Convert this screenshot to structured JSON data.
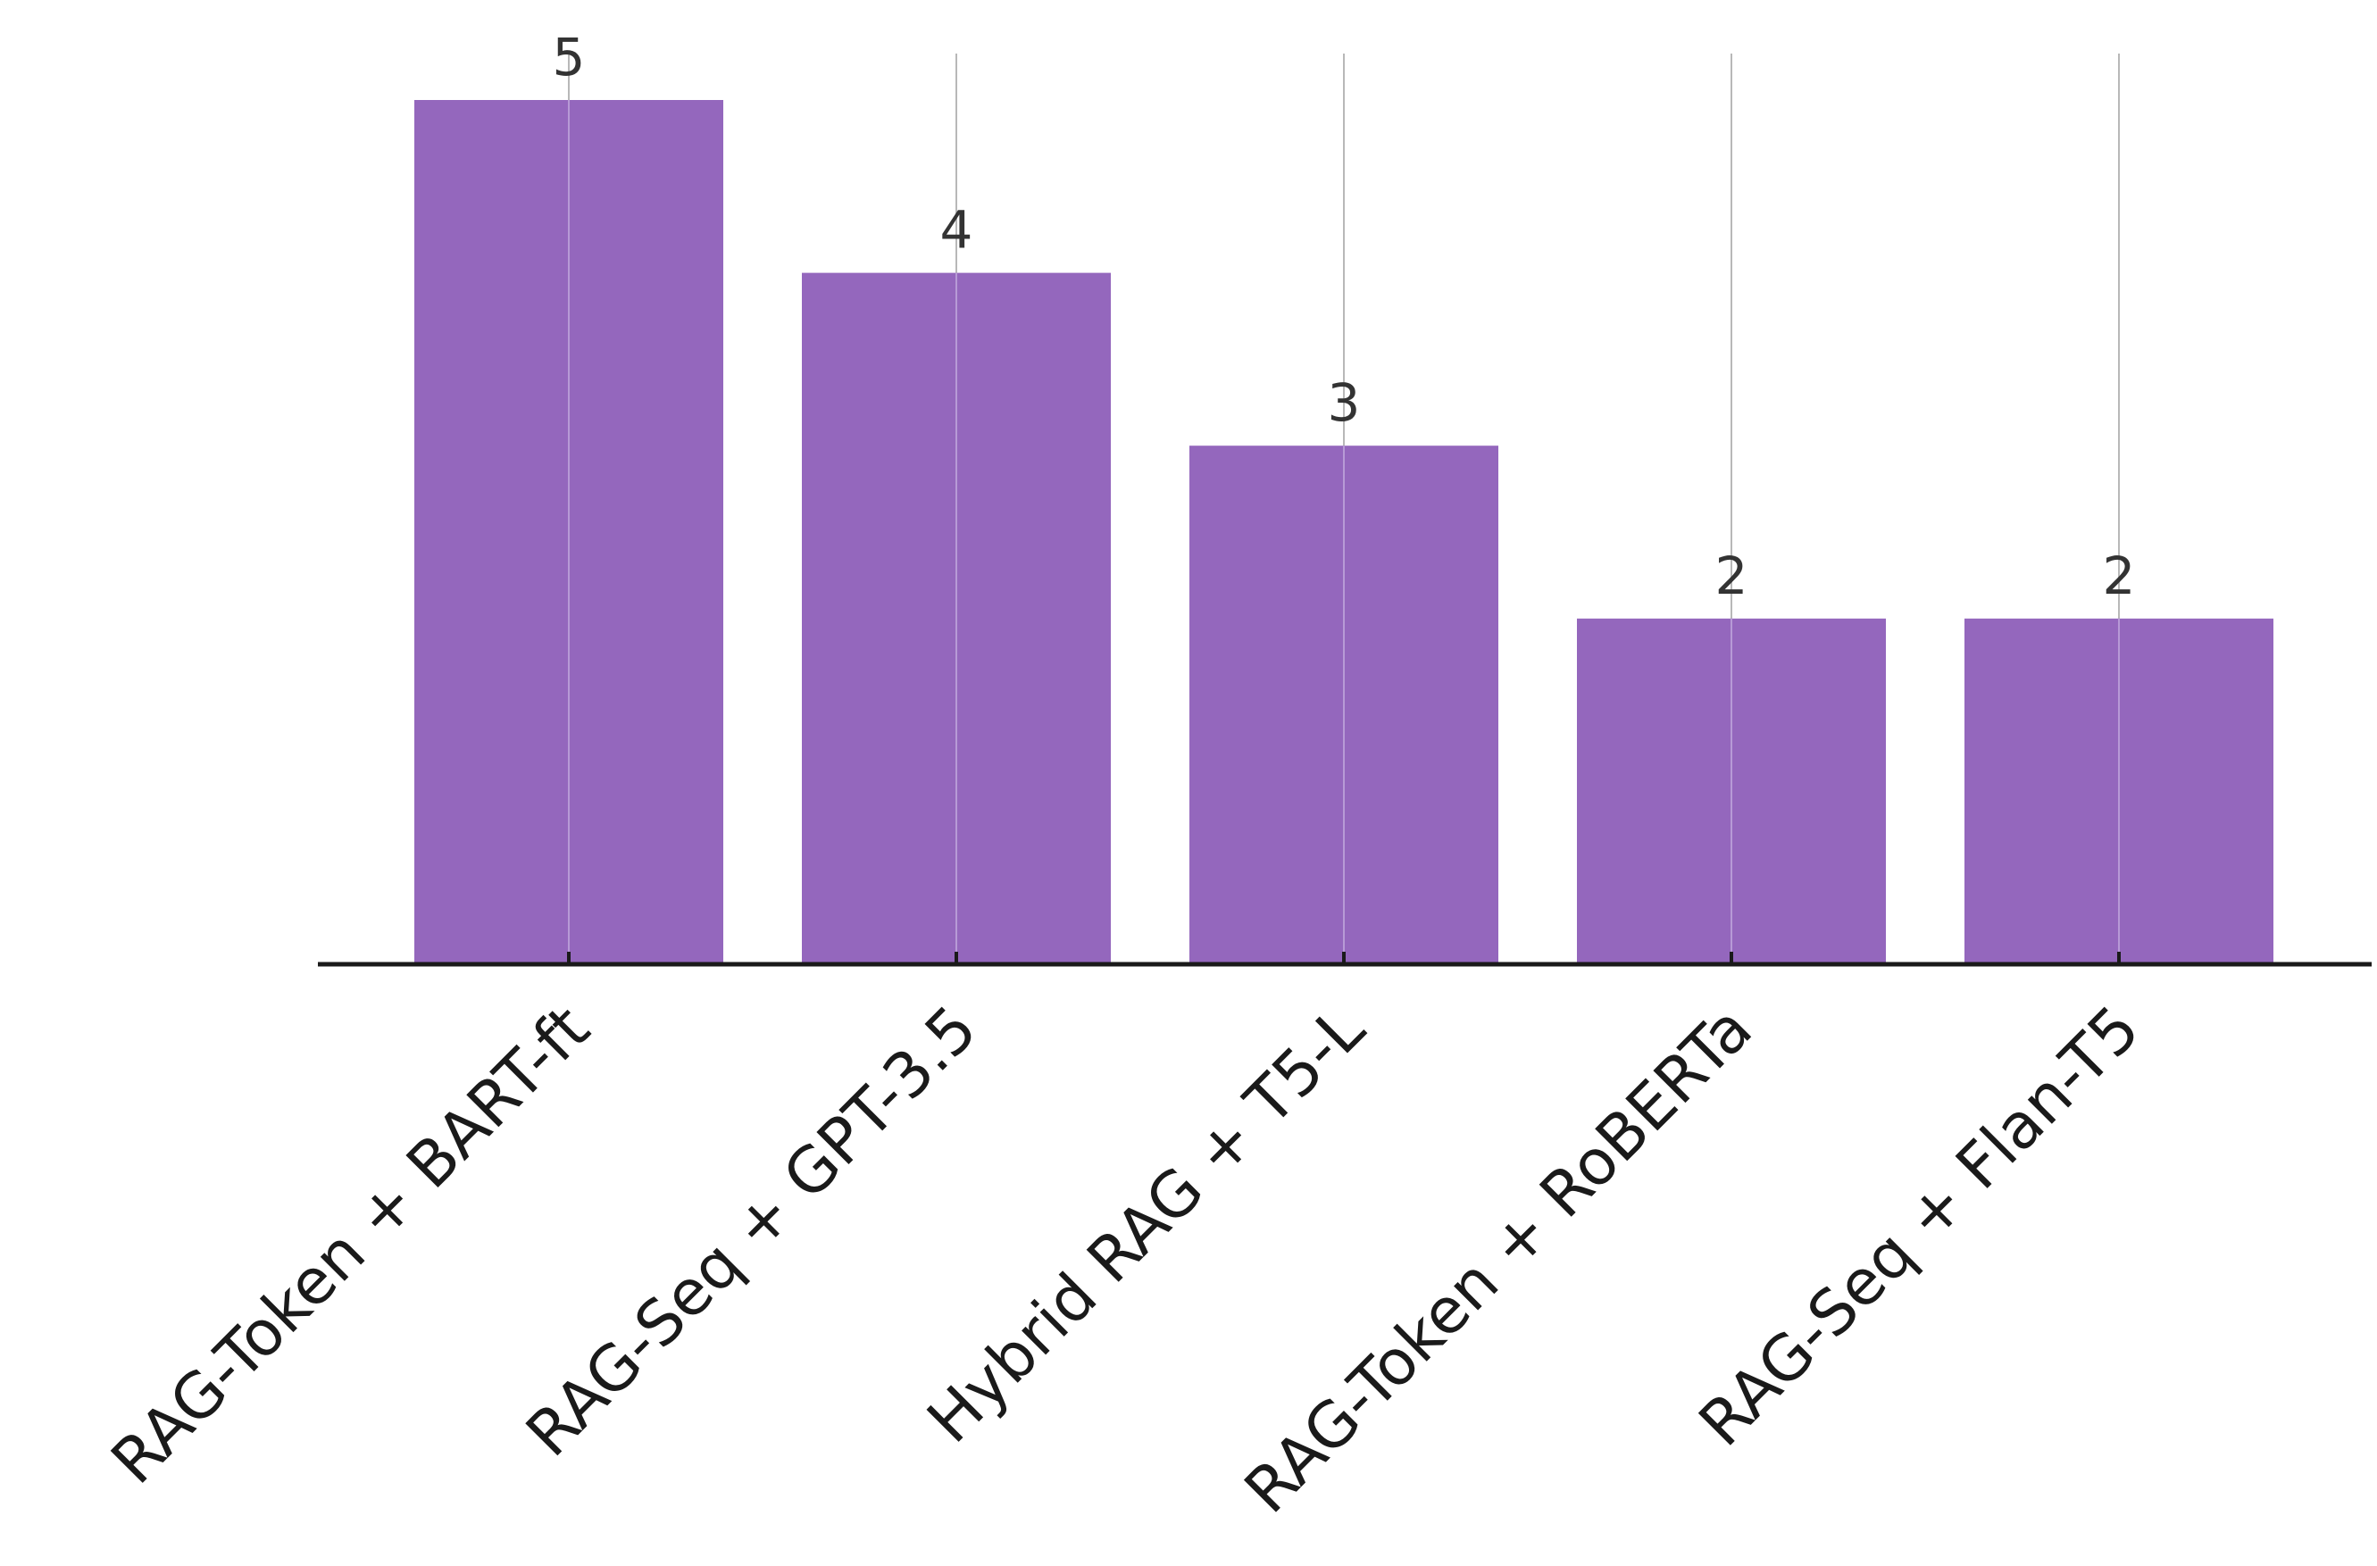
{
  "chart_data": {
    "type": "bar",
    "categories": [
      "RAG-Token + BART-ft",
      "RAG-Seq + GPT-3.5",
      "Hybrid RAG + T5-L",
      "RAG-Token + RoBERTa",
      "RAG-Seq + Flan-T5"
    ],
    "values": [
      5,
      4,
      3,
      2,
      2
    ],
    "data_labels": [
      "5",
      "4",
      "3",
      "2",
      "2"
    ],
    "title": "",
    "xlabel": "",
    "ylabel": "",
    "ylim": [
      0,
      5.5
    ],
    "grid": "vertical lines at category centers",
    "legend": "none",
    "colors": {
      "bar": "#9467bd",
      "axis": "#1a1a1a",
      "grid": "#b8b8b8"
    }
  }
}
